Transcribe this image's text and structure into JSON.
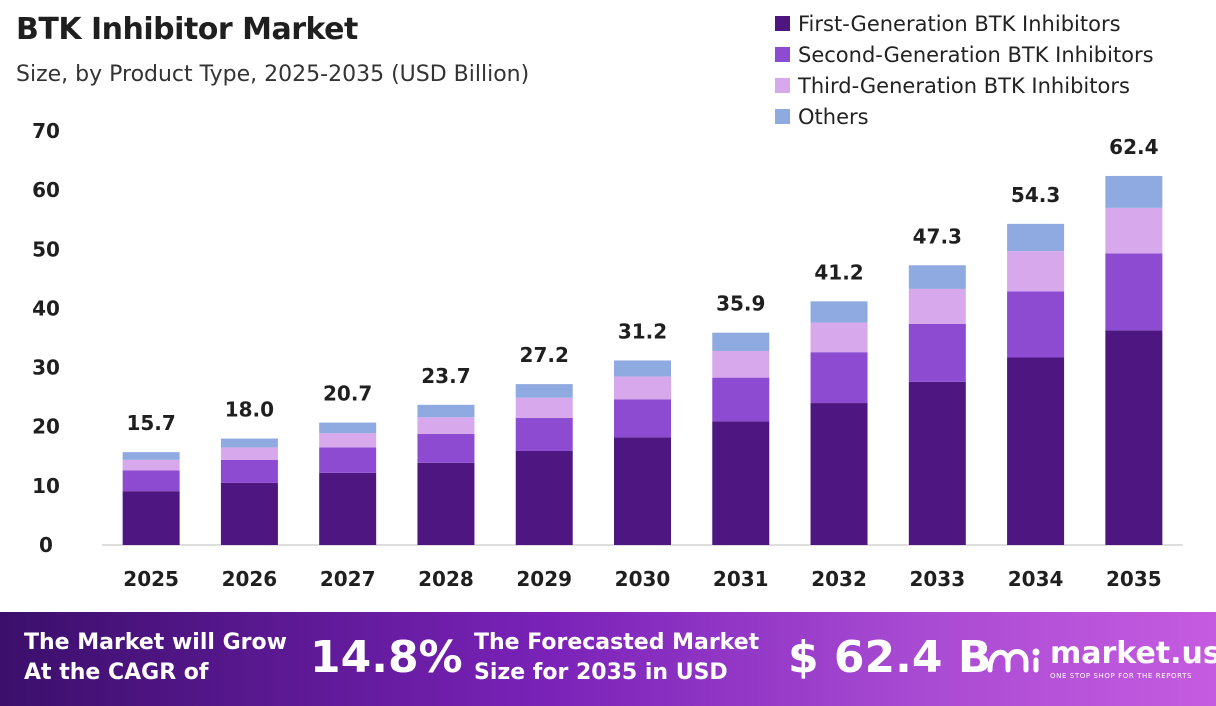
{
  "header": {
    "title": "BTK Inhibitor Market",
    "subtitle": "Size, by Product Type, 2025-2035 (USD Billion)"
  },
  "colors": {
    "first_gen": "#4e1680",
    "second_gen": "#8c4bd0",
    "third_gen": "#d7a8ec",
    "others": "#8faae0"
  },
  "chart_data": {
    "type": "bar",
    "stacked": true,
    "title": "BTK Inhibitor Market",
    "subtitle": "Size, by Product Type, 2025-2035 (USD Billion)",
    "categories": [
      "2025",
      "2026",
      "2027",
      "2028",
      "2029",
      "2030",
      "2031",
      "2032",
      "2033",
      "2034",
      "2035"
    ],
    "series": [
      {
        "name": "First-Generation BTK Inhibitors",
        "values": [
          9.1,
          10.5,
          12.2,
          13.9,
          15.9,
          18.2,
          20.9,
          24.0,
          27.6,
          31.7,
          36.3
        ]
      },
      {
        "name": "Second-Generation BTK Inhibitors",
        "values": [
          3.5,
          3.9,
          4.3,
          4.9,
          5.6,
          6.4,
          7.4,
          8.6,
          9.8,
          11.2,
          13.0
        ]
      },
      {
        "name": "Third-Generation BTK Inhibitors",
        "values": [
          1.8,
          2.1,
          2.4,
          2.8,
          3.4,
          3.9,
          4.5,
          5.0,
          5.9,
          6.8,
          7.7
        ]
      },
      {
        "name": "Others",
        "values": [
          1.3,
          1.5,
          1.8,
          2.1,
          2.3,
          2.7,
          3.1,
          3.6,
          4.0,
          4.6,
          5.4
        ]
      }
    ],
    "totals": [
      "15.7",
      "18.0",
      "20.7",
      "23.7",
      "27.2",
      "31.2",
      "35.9",
      "41.2",
      "47.3",
      "54.3",
      "62.4"
    ],
    "yticks": [
      "0",
      "10",
      "20",
      "30",
      "40",
      "50",
      "60",
      "70"
    ],
    "ylim": [
      0,
      70
    ],
    "xlabel": "",
    "ylabel": "",
    "grid": false,
    "legend_position": "top-right"
  },
  "footer": {
    "cagr_text_line1": "The Market will Grow",
    "cagr_text_line2": "At the CAGR of",
    "cagr_value": "14.8%",
    "forecast_text_line1": "The Forecasted Market",
    "forecast_text_line2": "Size for 2035 in USD",
    "forecast_value": "$ 62.4 B",
    "logo_name": "market.us",
    "logo_tagline": "ONE STOP SHOP FOR THE REPORTS"
  }
}
